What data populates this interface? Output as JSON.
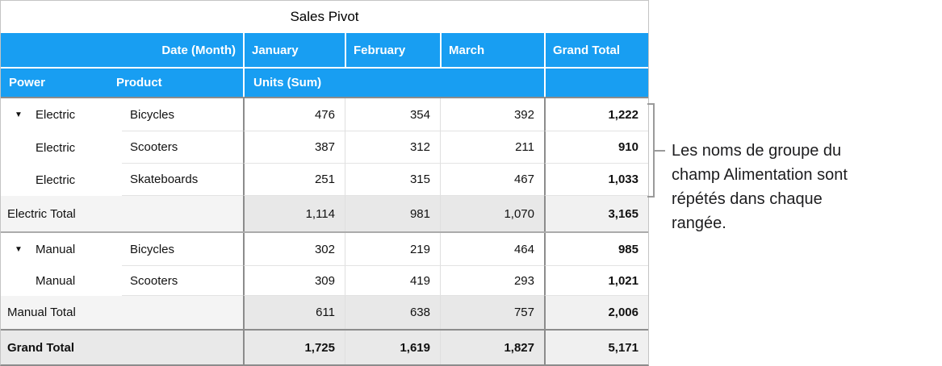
{
  "table": {
    "title": "Sales Pivot",
    "header": {
      "date_month_label": "Date (Month)",
      "power_label": "Power",
      "product_label": "Product",
      "units_label": "Units (Sum)",
      "months": [
        "January",
        "February",
        "March"
      ],
      "grand_total_label": "Grand Total"
    },
    "rows": [
      {
        "type": "data",
        "disclosure": true,
        "power": "Electric",
        "product": "Bicycles",
        "values": [
          "476",
          "354",
          "392"
        ],
        "total": "1,222"
      },
      {
        "type": "data",
        "disclosure": false,
        "power": "Electric",
        "product": "Scooters",
        "values": [
          "387",
          "312",
          "211"
        ],
        "total": "910"
      },
      {
        "type": "data",
        "disclosure": false,
        "power": "Electric",
        "product": "Skateboards",
        "values": [
          "251",
          "315",
          "467"
        ],
        "total": "1,033"
      },
      {
        "type": "subtotal",
        "label": "Electric Total",
        "values": [
          "1,114",
          "981",
          "1,070"
        ],
        "total": "3,165"
      },
      {
        "type": "data",
        "disclosure": true,
        "power": "Manual",
        "product": "Bicycles",
        "values": [
          "302",
          "219",
          "464"
        ],
        "total": "985"
      },
      {
        "type": "data",
        "disclosure": false,
        "power": "Manual",
        "product": "Scooters",
        "values": [
          "309",
          "419",
          "293"
        ],
        "total": "1,021"
      },
      {
        "type": "subtotal",
        "label": "Manual Total",
        "values": [
          "611",
          "638",
          "757"
        ],
        "total": "2,006"
      },
      {
        "type": "grand",
        "label": "Grand Total",
        "values": [
          "1,725",
          "1,619",
          "1,827"
        ],
        "total": "5,171"
      }
    ],
    "colors": {
      "header_blue": "#189EF2",
      "grid_dark": "#8c8c8c",
      "grid_light": "#e3e3e3"
    }
  },
  "icons": {
    "disclosure": "▼"
  },
  "annotation": {
    "full_text": "Les noms de groupe du champ Alimentation sont répétés dans chaque rangée.",
    "lines": [
      "Les noms de groupe du",
      "champ Alimentation sont",
      "répétés dans chaque",
      "rangée."
    ]
  }
}
